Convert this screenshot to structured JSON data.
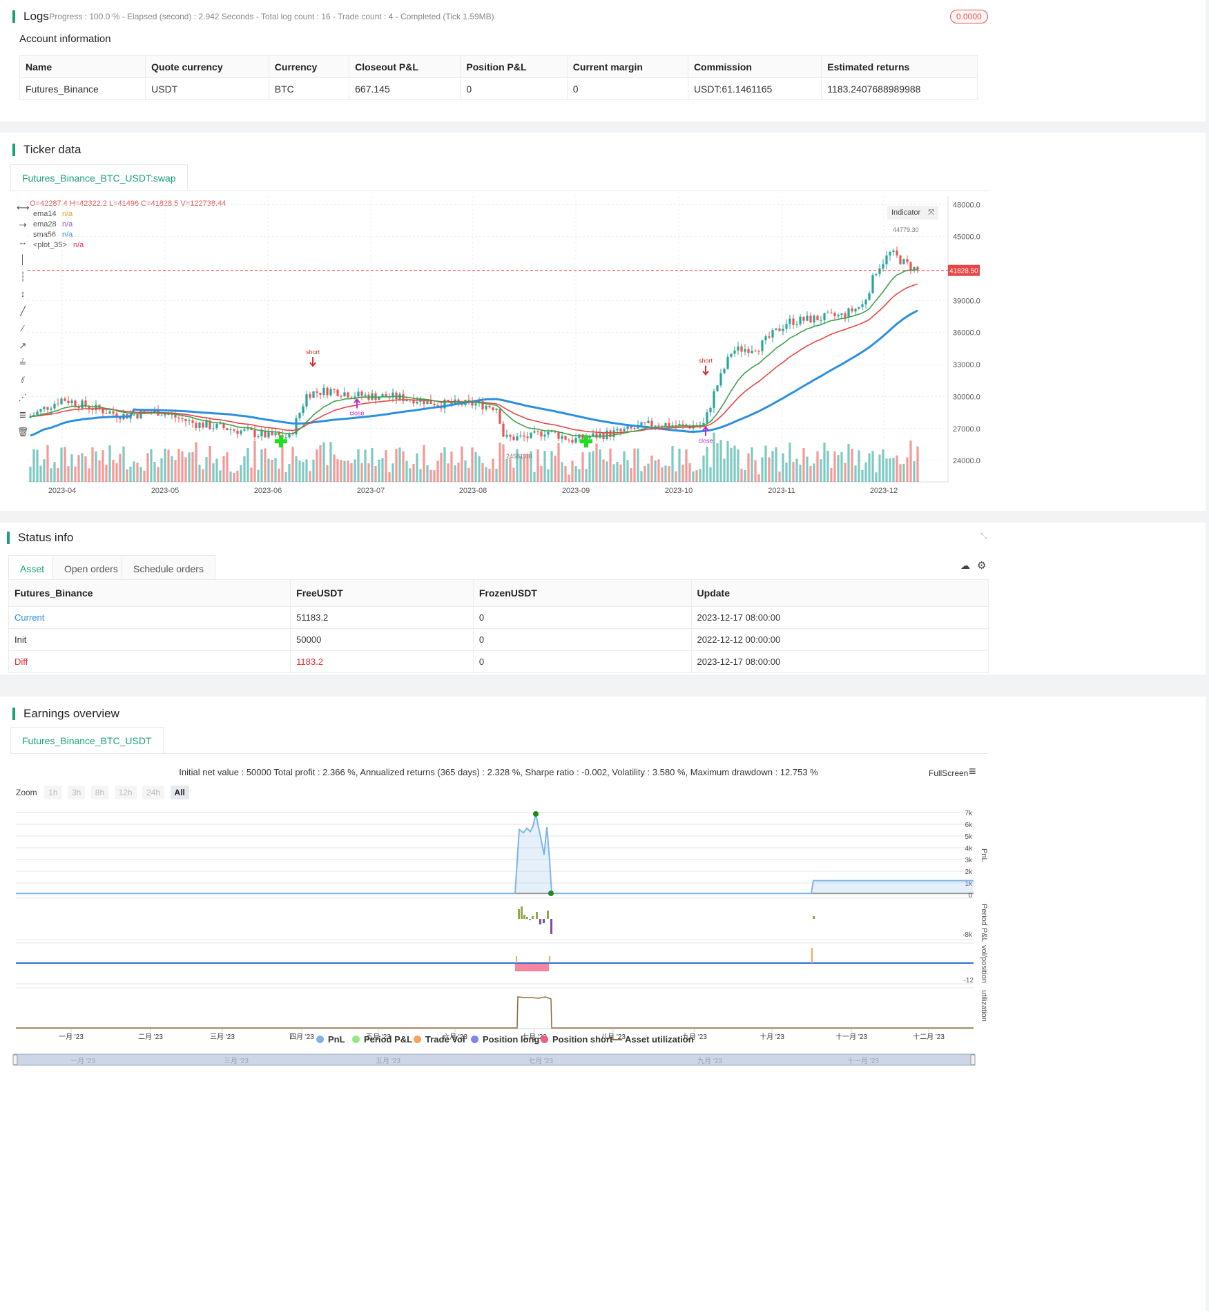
{
  "logs": {
    "title": "Logs",
    "summary": "- Progress : 100.0 % - Elapsed (second) : 2.942  Seconds - Total log count : 16 - Trade count : 4 - Completed (Tick 1.59MB)",
    "badge": "0.0000"
  },
  "account": {
    "title": "Account information",
    "columns": [
      "Name",
      "Quote currency",
      "Currency",
      "Closeout P&L",
      "Position P&L",
      "Current margin",
      "Commission",
      "Estimated returns"
    ],
    "row": [
      "Futures_Binance",
      "USDT",
      "BTC",
      "667.145",
      "0",
      "0",
      "USDT:61.1461165",
      "1183.2407688989988"
    ]
  },
  "ticker": {
    "title": "Ticker data",
    "tab": "Futures_Binance_BTC_USDT:swap",
    "ohlc": "O=42287.4 H=42322.2 L=41496 C=41828.5 V=122738.44",
    "indicators": [
      {
        "name": "ema14",
        "value": "n/a",
        "color": "#f39c12"
      },
      {
        "name": "ema28",
        "value": "n/a",
        "color": "#9b59b6"
      },
      {
        "name": "sma56",
        "value": "n/a",
        "color": "#2b8fe0"
      },
      {
        "name": "<plot_35>",
        "value": "n/a",
        "color": "#e91e63"
      }
    ],
    "indicator_button": "Indicator",
    "last_price": "41828.50",
    "high_label": "44779.30",
    "low_label": "24581.00",
    "y_ticks": [
      "48000.00",
      "45000.00",
      "42000.00",
      "39000.00",
      "36000.00",
      "33000.00",
      "30000.00",
      "27000.00",
      "24000.00"
    ],
    "x_ticks": [
      "2023-04",
      "2023-05",
      "2023-06",
      "2023-07",
      "2023-08",
      "2023-09",
      "2023-10",
      "2023-11",
      "2023-12"
    ],
    "signals": {
      "short": "short",
      "close": "close"
    }
  },
  "status": {
    "title": "Status info",
    "tabs": [
      "Asset",
      "Open orders",
      "Schedule orders"
    ],
    "columns": [
      "Futures_Binance",
      "FreeUSDT",
      "FrozenUSDT",
      "Update"
    ],
    "rows": [
      [
        "Current",
        "51183.2",
        "0",
        "2023-12-17 08:00:00"
      ],
      [
        "Init",
        "50000",
        "0",
        "2022-12-12 00:00:00"
      ],
      [
        "Diff",
        "1183.2",
        "0",
        "2023-12-17 08:00:00"
      ]
    ]
  },
  "earnings": {
    "title": "Earnings overview",
    "tab": "Futures_Binance_BTC_USDT",
    "summary": "Initial net value : 50000 Total profit : 2.366 %, Annualized returns (365 days) : 2.328 %, Sharpe ratio : -0.002, Volatility : 3.580 %, Maximum drawdown : 12.753 %",
    "fullscreen": "FullScreen",
    "zoom_label": "Zoom",
    "zoom_buttons": [
      "1h",
      "3h",
      "8h",
      "12h",
      "24h",
      "All"
    ],
    "pnl_ticks": [
      "7k",
      "6k",
      "5k",
      "4k",
      "3k",
      "2k",
      "1k",
      "0"
    ],
    "axis_titles": {
      "pnl": "PnL",
      "period": "Period P&L",
      "vol": "vol/position",
      "util": "utilization"
    },
    "period_tick": "-8k",
    "vol_tick": "-12",
    "months": [
      "一月 '23",
      "二月 '23",
      "三月 '23",
      "四月 '23",
      "五月 '23",
      "六月 '23",
      "七月 '23",
      "八月 '23",
      "九月 '23",
      "十月 '23",
      "十一月 '23",
      "十二月 '23"
    ],
    "nav_months": [
      "一月 '23",
      "三月 '23",
      "五月 '23",
      "七月 '23",
      "九月 '23",
      "十一月 '23"
    ],
    "legend": [
      {
        "name": "PnL",
        "color": "#7cb5ec"
      },
      {
        "name": "Period P&L",
        "color": "#90ed7d"
      },
      {
        "name": "Trade Vol",
        "color": "#f7a35c"
      },
      {
        "name": "Position long",
        "color": "#8085e9"
      },
      {
        "name": "Position short",
        "color": "#f15c80"
      },
      {
        "name": "Asset utilization",
        "color": "#8d6e3b"
      }
    ]
  }
}
